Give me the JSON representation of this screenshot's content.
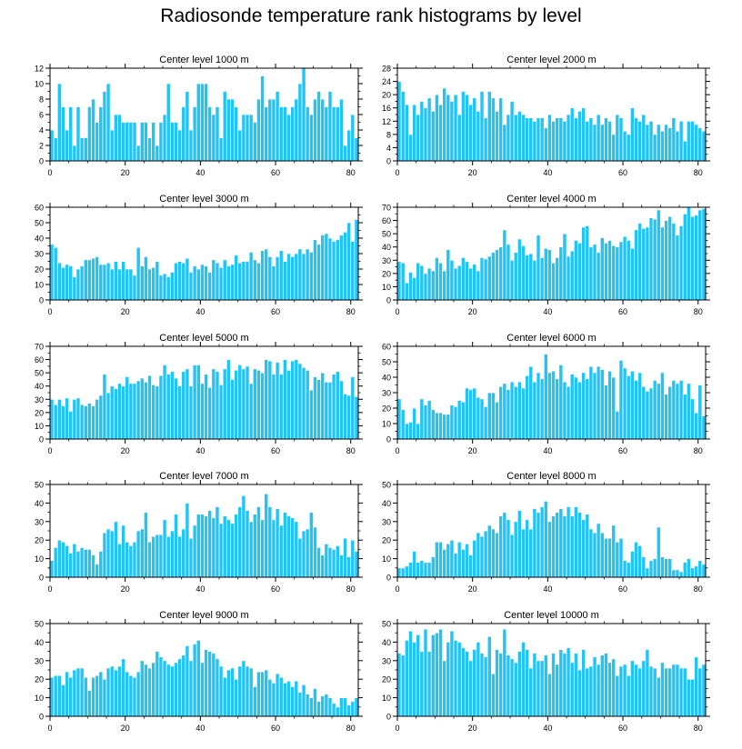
{
  "figure_title": "Radiosonde temperature rank histograms by level",
  "colors": {
    "bar": "#22c3f5",
    "bar_edge": "#ffffff",
    "axis": "#000000"
  },
  "chart_data": [
    {
      "type": "bar",
      "title": "Center level 1000 m",
      "x_start": 0,
      "xlim": [
        0,
        82
      ],
      "ylim": [
        0,
        12
      ],
      "xticks": [
        0,
        20,
        40,
        60,
        80
      ],
      "yticks": [
        0,
        2,
        4,
        6,
        8,
        10,
        12
      ],
      "values": [
        4,
        3,
        10,
        7,
        4,
        7,
        2,
        7,
        3,
        3,
        7,
        8,
        5,
        7,
        9,
        10,
        4,
        6,
        6,
        5,
        5,
        5,
        5,
        2,
        5,
        5,
        3,
        5,
        2,
        5,
        6,
        10,
        5,
        5,
        4,
        7,
        9,
        4,
        7,
        10,
        10,
        10,
        7,
        6,
        7,
        3,
        9,
        8,
        8,
        7,
        4,
        6,
        6,
        6,
        5,
        8,
        11,
        7,
        8,
        8,
        9,
        7,
        7,
        6,
        7,
        8,
        10,
        12,
        7,
        6,
        8,
        9,
        8,
        7,
        9,
        7,
        7,
        8,
        2,
        4,
        6,
        3
      ]
    },
    {
      "type": "bar",
      "title": "Center level 2000 m",
      "x_start": 0,
      "xlim": [
        0,
        82
      ],
      "ylim": [
        0,
        28
      ],
      "xticks": [
        0,
        20,
        40,
        60,
        80
      ],
      "yticks": [
        0,
        4,
        8,
        12,
        16,
        20,
        24,
        28
      ],
      "values": [
        24,
        21,
        17,
        8,
        17,
        14,
        18,
        16,
        19,
        15,
        20,
        17,
        22,
        20,
        18,
        20,
        14,
        21,
        20,
        17,
        19,
        15,
        21,
        13,
        21,
        19,
        15,
        19,
        11,
        14,
        18,
        14,
        15,
        14,
        13,
        13,
        12,
        13,
        13,
        10,
        14,
        12,
        13,
        13,
        12,
        14,
        16,
        13,
        15,
        16,
        12,
        13,
        11,
        14,
        11,
        13,
        12,
        8,
        14,
        13,
        9,
        8,
        16,
        13,
        12,
        14,
        11,
        12,
        8,
        11,
        9,
        11,
        10,
        13,
        9,
        12,
        6,
        12,
        12,
        11,
        10,
        9
      ]
    },
    {
      "type": "bar",
      "title": "Center level 3000 m",
      "x_start": 0,
      "xlim": [
        0,
        82
      ],
      "ylim": [
        0,
        60
      ],
      "xticks": [
        0,
        20,
        40,
        60,
        80
      ],
      "yticks": [
        0,
        10,
        20,
        30,
        40,
        50,
        60
      ],
      "values": [
        36,
        34,
        24,
        21,
        23,
        22,
        15,
        20,
        22,
        26,
        26,
        27,
        28,
        23,
        23,
        24,
        20,
        25,
        20,
        25,
        20,
        20,
        16,
        34,
        22,
        28,
        20,
        21,
        25,
        16,
        17,
        15,
        18,
        24,
        25,
        24,
        27,
        18,
        22,
        20,
        23,
        22,
        18,
        26,
        24,
        21,
        26,
        22,
        23,
        29,
        24,
        25,
        25,
        31,
        26,
        24,
        32,
        33,
        28,
        22,
        28,
        32,
        25,
        30,
        28,
        30,
        33,
        30,
        33,
        31,
        39,
        36,
        42,
        43,
        40,
        38,
        39,
        42,
        44,
        50,
        38,
        52
      ]
    },
    {
      "type": "bar",
      "title": "Center level 4000 m",
      "x_start": 0,
      "xlim": [
        0,
        82
      ],
      "ylim": [
        0,
        70
      ],
      "xticks": [
        0,
        20,
        40,
        60,
        80
      ],
      "yticks": [
        0,
        10,
        20,
        30,
        40,
        50,
        60,
        70
      ],
      "values": [
        29,
        28,
        13,
        21,
        17,
        28,
        26,
        20,
        24,
        22,
        32,
        28,
        22,
        38,
        30,
        24,
        26,
        32,
        29,
        24,
        27,
        22,
        32,
        31,
        33,
        36,
        38,
        40,
        53,
        42,
        30,
        36,
        46,
        41,
        34,
        35,
        30,
        49,
        32,
        39,
        38,
        28,
        32,
        40,
        50,
        33,
        37,
        45,
        43,
        55,
        56,
        40,
        42,
        36,
        47,
        43,
        45,
        41,
        40,
        44,
        48,
        45,
        39,
        53,
        58,
        54,
        55,
        62,
        61,
        68,
        55,
        60,
        63,
        58,
        49,
        56,
        65,
        70,
        63,
        64,
        68,
        69
      ]
    },
    {
      "type": "bar",
      "title": "Center level 5000 m",
      "x_start": 0,
      "xlim": [
        0,
        82
      ],
      "ylim": [
        0,
        70
      ],
      "xticks": [
        0,
        20,
        40,
        60,
        80
      ],
      "yticks": [
        0,
        10,
        20,
        30,
        40,
        50,
        60,
        70
      ],
      "values": [
        30,
        26,
        30,
        25,
        31,
        21,
        30,
        31,
        26,
        25,
        27,
        25,
        30,
        33,
        49,
        35,
        40,
        38,
        42,
        40,
        47,
        42,
        42,
        44,
        46,
        43,
        48,
        41,
        40,
        48,
        56,
        49,
        51,
        46,
        40,
        51,
        53,
        40,
        56,
        56,
        42,
        49,
        39,
        53,
        51,
        41,
        53,
        60,
        45,
        52,
        56,
        53,
        55,
        42,
        53,
        52,
        50,
        60,
        59,
        49,
        58,
        49,
        60,
        52,
        59,
        60,
        57,
        54,
        52,
        37,
        47,
        45,
        50,
        43,
        43,
        49,
        51,
        44,
        34,
        33,
        47,
        32
      ]
    },
    {
      "type": "bar",
      "title": "Center level 6000 m",
      "x_start": 0,
      "xlim": [
        0,
        82
      ],
      "ylim": [
        0,
        60
      ],
      "xticks": [
        0,
        20,
        40,
        60,
        80
      ],
      "yticks": [
        0,
        10,
        20,
        30,
        40,
        50,
        60
      ],
      "values": [
        26,
        19,
        10,
        11,
        20,
        10,
        26,
        22,
        25,
        19,
        17,
        17,
        16,
        16,
        22,
        21,
        25,
        24,
        33,
        32,
        33,
        27,
        26,
        21,
        30,
        30,
        24,
        34,
        36,
        32,
        37,
        34,
        37,
        33,
        41,
        47,
        37,
        43,
        39,
        55,
        43,
        44,
        39,
        48,
        37,
        34,
        42,
        40,
        37,
        43,
        39,
        47,
        43,
        47,
        45,
        35,
        44,
        40,
        18,
        51,
        46,
        41,
        44,
        38,
        43,
        34,
        31,
        33,
        38,
        36,
        43,
        29,
        34,
        38,
        36,
        38,
        29,
        36,
        26,
        17,
        35,
        15
      ]
    },
    {
      "type": "bar",
      "title": "Center level 7000 m",
      "x_start": 0,
      "xlim": [
        0,
        82
      ],
      "ylim": [
        0,
        50
      ],
      "xticks": [
        0,
        20,
        40,
        60,
        80
      ],
      "yticks": [
        0,
        10,
        20,
        30,
        40,
        50
      ],
      "values": [
        9,
        16,
        20,
        19,
        17,
        13,
        18,
        14,
        16,
        15,
        15,
        12,
        7,
        14,
        24,
        26,
        25,
        30,
        18,
        28,
        19,
        17,
        19,
        25,
        26,
        35,
        19,
        22,
        23,
        23,
        31,
        22,
        25,
        34,
        22,
        26,
        40,
        21,
        28,
        34,
        34,
        33,
        36,
        32,
        38,
        29,
        33,
        31,
        29,
        34,
        38,
        44,
        36,
        30,
        34,
        38,
        31,
        45,
        38,
        31,
        37,
        28,
        35,
        33,
        32,
        30,
        21,
        25,
        26,
        35,
        27,
        16,
        12,
        18,
        16,
        15,
        17,
        12,
        21,
        11,
        20,
        14
      ]
    },
    {
      "type": "bar",
      "title": "Center level 8000 m",
      "x_start": 0,
      "xlim": [
        0,
        82
      ],
      "ylim": [
        0,
        50
      ],
      "xticks": [
        0,
        20,
        40,
        60,
        80
      ],
      "yticks": [
        0,
        10,
        20,
        30,
        40,
        50
      ],
      "values": [
        5,
        5,
        6,
        8,
        14,
        8,
        9,
        8,
        8,
        11,
        19,
        19,
        15,
        18,
        20,
        13,
        19,
        15,
        18,
        12,
        20,
        24,
        22,
        25,
        28,
        26,
        24,
        33,
        35,
        31,
        23,
        30,
        36,
        26,
        31,
        26,
        37,
        35,
        38,
        41,
        30,
        33,
        35,
        37,
        33,
        38,
        33,
        38,
        35,
        31,
        34,
        26,
        24,
        29,
        24,
        21,
        21,
        28,
        19,
        21,
        9,
        8,
        14,
        19,
        17,
        11,
        5,
        9,
        10,
        27,
        11,
        10,
        10,
        4,
        4,
        3,
        8,
        10,
        5,
        6,
        9,
        7
      ]
    },
    {
      "type": "bar",
      "title": "Center level 9000 m",
      "x_start": 0,
      "xlim": [
        0,
        82
      ],
      "ylim": [
        0,
        50
      ],
      "xticks": [
        0,
        20,
        40,
        60,
        80
      ],
      "yticks": [
        0,
        10,
        20,
        30,
        40,
        50
      ],
      "values": [
        21,
        22,
        22,
        17,
        24,
        21,
        25,
        26,
        26,
        21,
        14,
        21,
        22,
        24,
        20,
        26,
        27,
        25,
        27,
        31,
        24,
        22,
        21,
        24,
        30,
        28,
        26,
        29,
        35,
        32,
        30,
        28,
        27,
        29,
        31,
        33,
        38,
        30,
        39,
        41,
        29,
        36,
        35,
        34,
        31,
        27,
        21,
        25,
        26,
        20,
        27,
        30,
        27,
        26,
        16,
        24,
        24,
        25,
        20,
        18,
        23,
        21,
        18,
        19,
        16,
        19,
        13,
        17,
        12,
        10,
        15,
        8,
        11,
        12,
        10,
        7,
        5,
        10,
        10,
        6,
        8,
        10
      ]
    },
    {
      "type": "bar",
      "title": "Center level 10000 m",
      "x_start": 0,
      "xlim": [
        0,
        82
      ],
      "ylim": [
        0,
        50
      ],
      "xticks": [
        0,
        20,
        40,
        60,
        80
      ],
      "yticks": [
        0,
        10,
        20,
        30,
        40,
        50
      ],
      "values": [
        34,
        33,
        41,
        46,
        40,
        44,
        35,
        47,
        35,
        44,
        45,
        47,
        30,
        40,
        46,
        41,
        40,
        37,
        35,
        30,
        36,
        40,
        34,
        32,
        43,
        23,
        36,
        34,
        47,
        33,
        31,
        29,
        35,
        40,
        36,
        26,
        34,
        30,
        30,
        33,
        23,
        34,
        28,
        36,
        34,
        37,
        29,
        34,
        25,
        36,
        26,
        27,
        32,
        28,
        33,
        34,
        29,
        31,
        22,
        27,
        28,
        22,
        30,
        28,
        26,
        30,
        36,
        27,
        26,
        21,
        29,
        26,
        26,
        28,
        28,
        26,
        26,
        20,
        20,
        32,
        26,
        28
      ]
    }
  ]
}
